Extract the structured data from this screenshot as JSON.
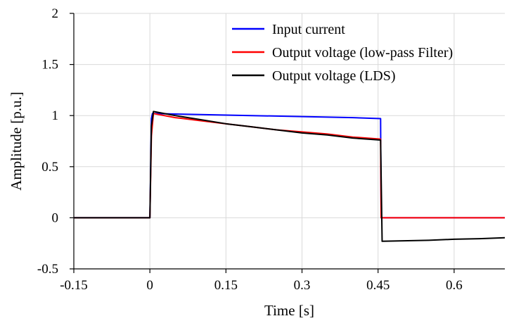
{
  "chart_data": {
    "type": "line",
    "title": "",
    "xlabel": "Time [s]",
    "ylabel": "Amplitude [p.u.]",
    "xlim": [
      -0.15,
      0.7
    ],
    "ylim": [
      -0.5,
      2
    ],
    "xticks": [
      -0.15,
      0,
      0.15,
      0.3,
      0.45,
      0.6
    ],
    "xtick_labels": [
      "-0.15",
      "0",
      "0.15",
      "0.3",
      "0.45",
      "0.6"
    ],
    "yticks": [
      -0.5,
      0,
      0.5,
      1,
      1.5,
      2
    ],
    "ytick_labels": [
      "-0.5",
      "0",
      "0.5",
      "1",
      "1.5",
      "2"
    ],
    "grid": true,
    "legend_position": "top-right",
    "series": [
      {
        "name": "Input current",
        "color": "#0000ff",
        "x": [
          -0.15,
          0,
          0.003,
          0.005,
          0.1,
          0.2,
          0.3,
          0.4,
          0.455,
          0.456,
          0.7
        ],
        "y": [
          0,
          0,
          0.97,
          1.02,
          1.01,
          1.0,
          0.99,
          0.98,
          0.97,
          0,
          0
        ]
      },
      {
        "name": "Output voltage (low-pass Filter)",
        "color": "#ff0000",
        "x": [
          -0.15,
          0,
          0.003,
          0.007,
          0.05,
          0.1,
          0.15,
          0.2,
          0.25,
          0.3,
          0.35,
          0.4,
          0.455,
          0.456,
          0.7
        ],
        "y": [
          0,
          0,
          0.8,
          1.02,
          0.98,
          0.95,
          0.92,
          0.89,
          0.86,
          0.84,
          0.82,
          0.79,
          0.77,
          0,
          0
        ]
      },
      {
        "name": "Output voltage (LDS)",
        "color": "#000000",
        "x": [
          -0.15,
          0,
          0.003,
          0.007,
          0.05,
          0.1,
          0.15,
          0.2,
          0.25,
          0.3,
          0.35,
          0.4,
          0.455,
          0.458,
          0.5,
          0.55,
          0.6,
          0.65,
          0.7
        ],
        "y": [
          0,
          0,
          0.9,
          1.04,
          1.0,
          0.96,
          0.92,
          0.89,
          0.86,
          0.83,
          0.81,
          0.78,
          0.76,
          -0.23,
          -0.225,
          -0.22,
          -0.21,
          -0.205,
          -0.195
        ]
      }
    ]
  }
}
